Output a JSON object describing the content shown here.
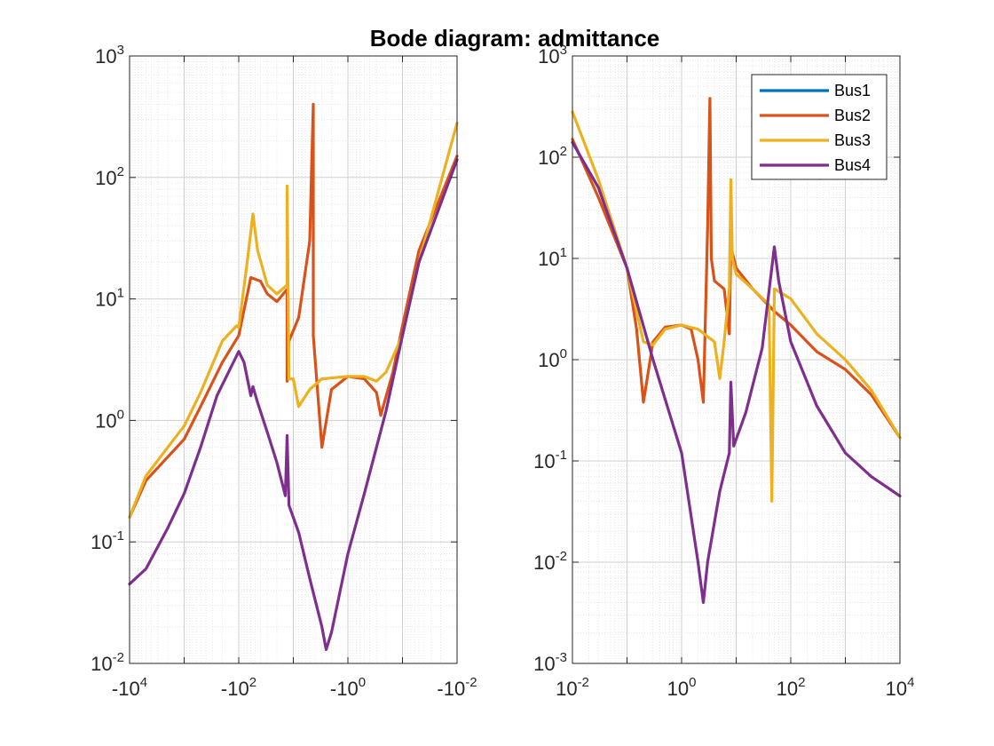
{
  "chart_data": {
    "type": "line",
    "title": "Bode diagram: admittance",
    "legend": {
      "location": "top-right of right panel",
      "entries": [
        "Bus1",
        "Bus2",
        "Bus3",
        "Bus4"
      ]
    },
    "colors": {
      "Bus1": "#0072BD",
      "Bus2": "#D95319",
      "Bus3": "#EDB120",
      "Bus4": "#7E2F8E"
    },
    "panels": [
      {
        "name": "negative-frequency",
        "x_scale": "log (negative)",
        "y_scale": "log",
        "xlim": [
          -10000,
          -0.01
        ],
        "ylim": [
          0.01,
          1000
        ],
        "x_ticks": [
          {
            "base": "-10",
            "exp": "4"
          },
          {
            "base": "-10",
            "exp": "2"
          },
          {
            "base": "-10",
            "exp": "0"
          },
          {
            "base": "-10",
            "exp": "-2"
          }
        ],
        "y_ticks": [
          {
            "base": "10",
            "exp": "-2"
          },
          {
            "base": "10",
            "exp": "-1"
          },
          {
            "base": "10",
            "exp": "0"
          },
          {
            "base": "10",
            "exp": "1"
          },
          {
            "base": "10",
            "exp": "2"
          },
          {
            "base": "10",
            "exp": "3"
          }
        ],
        "grid": true,
        "series": [
          {
            "name": "Bus2",
            "points": [
              [
                -10000,
                0.16
              ],
              [
                -5000,
                0.32
              ],
              [
                -2000,
                0.5
              ],
              [
                -1000,
                0.7
              ],
              [
                -500,
                1.3
              ],
              [
                -200,
                3
              ],
              [
                -100,
                5
              ],
              [
                -60,
                15
              ],
              [
                -40,
                14
              ],
              [
                -30,
                11
              ],
              [
                -20,
                9.5
              ],
              [
                -13,
                12
              ],
              [
                -13,
                2.1
              ],
              [
                -12,
                4.5
              ],
              [
                -8,
                7
              ],
              [
                -5,
                30
              ],
              [
                -4.3,
                400
              ],
              [
                -4.3,
                5
              ],
              [
                -3,
                0.6
              ],
              [
                -2,
                1.8
              ],
              [
                -1,
                2.3
              ],
              [
                -0.5,
                2.2
              ],
              [
                -0.3,
                1.7
              ],
              [
                -0.25,
                1.1
              ],
              [
                -0.15,
                2.5
              ],
              [
                -0.1,
                6
              ],
              [
                -0.05,
                25
              ],
              [
                -0.01,
                150
              ]
            ]
          },
          {
            "name": "Bus3",
            "points": [
              [
                -10000,
                0.16
              ],
              [
                -5000,
                0.35
              ],
              [
                -2000,
                0.6
              ],
              [
                -1000,
                0.9
              ],
              [
                -500,
                1.7
              ],
              [
                -200,
                4.5
              ],
              [
                -110,
                6
              ],
              [
                -100,
                5.8
              ],
              [
                -70,
                20
              ],
              [
                -55,
                50
              ],
              [
                -45,
                25
              ],
              [
                -30,
                13
              ],
              [
                -20,
                11
              ],
              [
                -13,
                13
              ],
              [
                -13,
                85
              ],
              [
                -12,
                2.2
              ],
              [
                -10,
                2.2
              ],
              [
                -8,
                1.3
              ],
              [
                -5,
                1.8
              ],
              [
                -3,
                2.2
              ],
              [
                -1,
                2.3
              ],
              [
                -0.5,
                2.3
              ],
              [
                -0.3,
                2.1
              ],
              [
                -0.2,
                2.5
              ],
              [
                -0.1,
                5
              ],
              [
                -0.05,
                20
              ],
              [
                -0.01,
                280
              ]
            ]
          },
          {
            "name": "Bus4",
            "points": [
              [
                -10000,
                0.045
              ],
              [
                -5000,
                0.06
              ],
              [
                -2000,
                0.13
              ],
              [
                -1000,
                0.25
              ],
              [
                -500,
                0.6
              ],
              [
                -250,
                1.6
              ],
              [
                -100,
                3.7
              ],
              [
                -80,
                3
              ],
              [
                -60,
                1.6
              ],
              [
                -55,
                1.9
              ],
              [
                -45,
                1.4
              ],
              [
                -30,
                0.8
              ],
              [
                -20,
                0.45
              ],
              [
                -14,
                0.24
              ],
              [
                -13,
                0.75
              ],
              [
                -12,
                0.2
              ],
              [
                -8,
                0.12
              ],
              [
                -5,
                0.05
              ],
              [
                -3,
                0.02
              ],
              [
                -2.5,
                0.013
              ],
              [
                -2,
                0.018
              ],
              [
                -1,
                0.08
              ],
              [
                -0.5,
                0.25
              ],
              [
                -0.2,
                1.2
              ],
              [
                -0.1,
                5
              ],
              [
                -0.05,
                20
              ],
              [
                -0.01,
                140
              ]
            ]
          },
          {
            "name": "Bus1",
            "points": []
          }
        ]
      },
      {
        "name": "positive-frequency",
        "x_scale": "log",
        "y_scale": "log",
        "xlim": [
          0.01,
          10000
        ],
        "ylim": [
          0.001,
          1000
        ],
        "x_ticks": [
          {
            "base": "10",
            "exp": "-2"
          },
          {
            "base": "10",
            "exp": "0"
          },
          {
            "base": "10",
            "exp": "2"
          },
          {
            "base": "10",
            "exp": "4"
          }
        ],
        "y_ticks": [
          {
            "base": "10",
            "exp": "-3"
          },
          {
            "base": "10",
            "exp": "-2"
          },
          {
            "base": "10",
            "exp": "-1"
          },
          {
            "base": "10",
            "exp": "0"
          },
          {
            "base": "10",
            "exp": "1"
          },
          {
            "base": "10",
            "exp": "2"
          },
          {
            "base": "10",
            "exp": "3"
          }
        ],
        "grid": true,
        "series": [
          {
            "name": "Bus2",
            "points": [
              [
                0.01,
                150
              ],
              [
                0.03,
                40
              ],
              [
                0.1,
                8
              ],
              [
                0.15,
                2
              ],
              [
                0.2,
                0.38
              ],
              [
                0.3,
                1.5
              ],
              [
                0.5,
                2.1
              ],
              [
                1,
                2.2
              ],
              [
                1.5,
                2
              ],
              [
                2,
                1
              ],
              [
                2.5,
                0.38
              ],
              [
                3,
                20
              ],
              [
                3.3,
                380
              ],
              [
                3.5,
                10
              ],
              [
                4,
                6
              ],
              [
                6,
                5
              ],
              [
                7.5,
                1.8
              ],
              [
                8,
                13
              ],
              [
                10,
                8
              ],
              [
                20,
                5
              ],
              [
                50,
                3
              ],
              [
                100,
                2.2
              ],
              [
                300,
                1.2
              ],
              [
                1000,
                0.8
              ],
              [
                3000,
                0.45
              ],
              [
                10000,
                0.17
              ]
            ]
          },
          {
            "name": "Bus3",
            "points": [
              [
                0.01,
                280
              ],
              [
                0.03,
                60
              ],
              [
                0.1,
                8
              ],
              [
                0.2,
                1.5
              ],
              [
                0.3,
                1.4
              ],
              [
                0.5,
                2
              ],
              [
                1,
                2.2
              ],
              [
                2,
                2
              ],
              [
                4,
                1.5
              ],
              [
                5,
                0.65
              ],
              [
                6,
                1.5
              ],
              [
                7.5,
                5
              ],
              [
                8,
                60
              ],
              [
                8.5,
                10
              ],
              [
                10,
                7
              ],
              [
                20,
                5
              ],
              [
                40,
                3.5
              ],
              [
                45,
                0.04
              ],
              [
                50,
                5
              ],
              [
                100,
                4
              ],
              [
                300,
                1.8
              ],
              [
                1000,
                1
              ],
              [
                3000,
                0.5
              ],
              [
                10000,
                0.17
              ]
            ]
          },
          {
            "name": "Bus4",
            "points": [
              [
                0.01,
                140
              ],
              [
                0.03,
                50
              ],
              [
                0.1,
                8
              ],
              [
                0.3,
                1
              ],
              [
                1,
                0.12
              ],
              [
                2,
                0.01
              ],
              [
                2.5,
                0.004
              ],
              [
                3,
                0.01
              ],
              [
                5,
                0.05
              ],
              [
                7.5,
                0.12
              ],
              [
                8,
                0.6
              ],
              [
                9,
                0.14
              ],
              [
                15,
                0.3
              ],
              [
                30,
                1.3
              ],
              [
                50,
                13
              ],
              [
                60,
                6
              ],
              [
                100,
                1.5
              ],
              [
                300,
                0.35
              ],
              [
                1000,
                0.12
              ],
              [
                3000,
                0.07
              ],
              [
                10000,
                0.045
              ]
            ]
          },
          {
            "name": "Bus1",
            "points": []
          }
        ]
      }
    ]
  }
}
